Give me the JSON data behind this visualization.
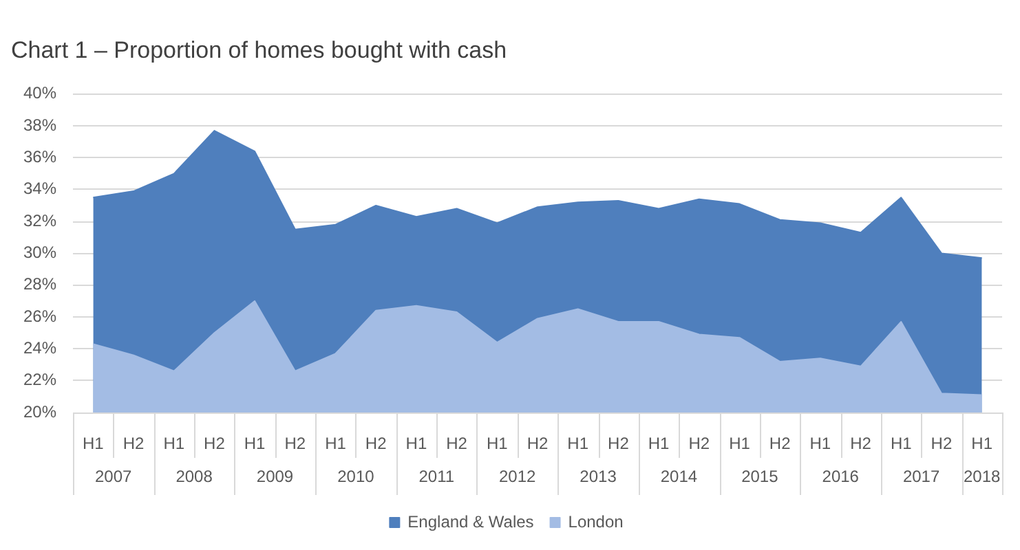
{
  "chart_data": {
    "type": "area",
    "title": "Chart 1 – Proportion of homes bought with cash",
    "categories": [
      "H1",
      "H2",
      "H1",
      "H2",
      "H1",
      "H2",
      "H1",
      "H2",
      "H1",
      "H2",
      "H1",
      "H2",
      "H1",
      "H2",
      "H1",
      "H2",
      "H1",
      "H2",
      "H1",
      "H2",
      "H1",
      "H2",
      "H1"
    ],
    "annotations": [
      "2007",
      "2008",
      "2009",
      "2010",
      "2011",
      "2012",
      "2013",
      "2014",
      "2015",
      "2016",
      "2017",
      "2018"
    ],
    "series": [
      {
        "name": "England & Wales",
        "color": "#4f7fbd",
        "values": [
          33.5,
          33.9,
          35.0,
          37.7,
          36.4,
          31.5,
          31.8,
          33.0,
          32.3,
          32.8,
          31.9,
          32.9,
          33.2,
          33.3,
          32.8,
          33.4,
          33.1,
          32.1,
          31.9,
          31.3,
          33.5,
          30.0,
          29.7
        ]
      },
      {
        "name": "London",
        "color": "#a3bce4",
        "values": [
          24.3,
          23.6,
          22.6,
          25.0,
          27.0,
          22.6,
          23.7,
          26.4,
          26.7,
          26.3,
          24.4,
          25.9,
          26.5,
          25.7,
          25.7,
          24.9,
          24.7,
          23.2,
          23.4,
          22.9,
          25.7,
          21.2,
          21.1
        ]
      }
    ],
    "ylim": [
      20,
      40
    ],
    "yticks": [
      {
        "value": 20,
        "label": "20%"
      },
      {
        "value": 22,
        "label": "22%"
      },
      {
        "value": 24,
        "label": "24%"
      },
      {
        "value": 26,
        "label": "26%"
      },
      {
        "value": 28,
        "label": "28%"
      },
      {
        "value": 30,
        "label": "30%"
      },
      {
        "value": 32,
        "label": "32%"
      },
      {
        "value": 34,
        "label": "34%"
      },
      {
        "value": 36,
        "label": "36%"
      },
      {
        "value": 38,
        "label": "38%"
      },
      {
        "value": 40,
        "label": "40%"
      }
    ],
    "grid": "y",
    "legend": "bottom"
  }
}
